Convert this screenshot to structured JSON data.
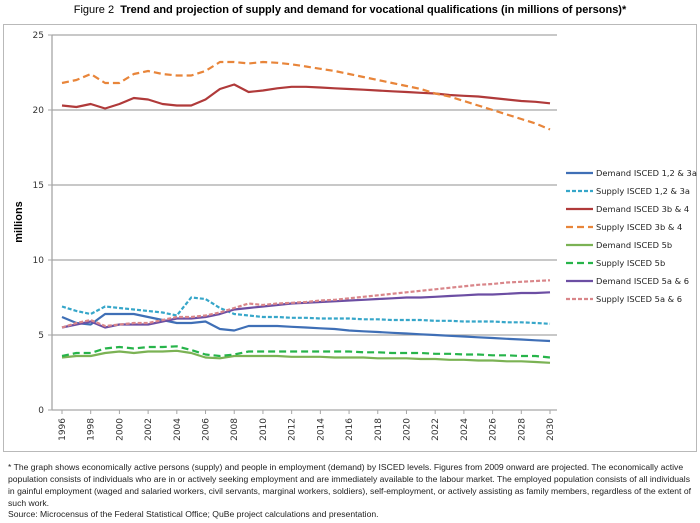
{
  "figure": {
    "number": "Figure 2",
    "title": "Trend and projection of supply and demand for vocational qualifications (in millions of persons)*"
  },
  "footnote": "* The graph shows economically active persons (supply) and people in employment (demand) by ISCED levels. Figures from 2009 onward are projected. The economically active population consists of individuals who are in or actively seeking employment and are immediately available to the labour market. The employed population consists of all individuals in gainful employment (waged and salaried workers, civil servants, marginal workers, soldiers), self-employment, or actively assisting as family members, regardless of the extent of such work.",
  "source": "Source: Microcensus of the Federal Statistical Office; QuBe project calculations and presentation.",
  "chart_data": {
    "type": "line",
    "title": "Trend and projection of supply and demand for vocational qualifications (in millions of persons)*",
    "xlabel": "",
    "ylabel": "millions",
    "ylim": [
      0,
      25
    ],
    "yticks": [
      0,
      5,
      10,
      15,
      20,
      25
    ],
    "xlim": [
      1996,
      2030
    ],
    "xticks": [
      "1996",
      "1998",
      "2000",
      "2002",
      "2004",
      "2006",
      "2008",
      "2010",
      "2012",
      "2014",
      "2016",
      "2018",
      "2020",
      "2022",
      "2024",
      "2026",
      "2028",
      "2030"
    ],
    "grid": "horizontal",
    "legend_position": "right",
    "x": [
      1996,
      1997,
      1998,
      1999,
      2000,
      2001,
      2002,
      2003,
      2004,
      2005,
      2006,
      2007,
      2008,
      2009,
      2010,
      2011,
      2012,
      2013,
      2014,
      2015,
      2016,
      2017,
      2018,
      2019,
      2020,
      2021,
      2022,
      2023,
      2024,
      2025,
      2026,
      2027,
      2028,
      2029,
      2030
    ],
    "series": [
      {
        "name": "Demand ISCED 1,2 & 3a",
        "color": "#3f6fb6",
        "dash": "solid",
        "values": [
          6.2,
          5.8,
          5.7,
          6.4,
          6.4,
          6.4,
          6.2,
          6.0,
          5.8,
          5.8,
          5.9,
          5.4,
          5.3,
          5.6,
          5.6,
          5.6,
          5.55,
          5.5,
          5.45,
          5.4,
          5.3,
          5.25,
          5.2,
          5.15,
          5.1,
          5.05,
          5.0,
          4.95,
          4.9,
          4.85,
          4.8,
          4.75,
          4.7,
          4.65,
          4.6
        ]
      },
      {
        "name": "Supply ISCED 1,2 & 3a",
        "color": "#36a6c9",
        "dash": "short-dash",
        "values": [
          6.9,
          6.6,
          6.4,
          6.9,
          6.8,
          6.7,
          6.6,
          6.5,
          6.3,
          7.5,
          7.4,
          6.8,
          6.4,
          6.3,
          6.2,
          6.2,
          6.15,
          6.15,
          6.1,
          6.1,
          6.1,
          6.05,
          6.05,
          6.0,
          6.0,
          6.0,
          5.95,
          5.95,
          5.9,
          5.9,
          5.9,
          5.85,
          5.85,
          5.8,
          5.75
        ]
      },
      {
        "name": "Demand ISCED 3b & 4",
        "color": "#b03a3a",
        "dash": "solid",
        "values": [
          20.3,
          20.2,
          20.4,
          20.1,
          20.4,
          20.8,
          20.7,
          20.4,
          20.3,
          20.3,
          20.7,
          21.4,
          21.7,
          21.2,
          21.3,
          21.45,
          21.55,
          21.55,
          21.5,
          21.45,
          21.4,
          21.35,
          21.3,
          21.25,
          21.2,
          21.15,
          21.1,
          21.0,
          20.95,
          20.9,
          20.8,
          20.7,
          20.6,
          20.55,
          20.45
        ]
      },
      {
        "name": "Supply ISCED 3b & 4",
        "color": "#e8853a",
        "dash": "long-dash",
        "values": [
          21.8,
          22.0,
          22.4,
          21.8,
          21.8,
          22.4,
          22.6,
          22.4,
          22.3,
          22.3,
          22.6,
          23.2,
          23.2,
          23.1,
          23.2,
          23.15,
          23.05,
          22.9,
          22.75,
          22.6,
          22.4,
          22.2,
          22.0,
          21.8,
          21.6,
          21.4,
          21.1,
          20.9,
          20.6,
          20.3,
          20.0,
          19.7,
          19.4,
          19.1,
          18.7
        ]
      },
      {
        "name": "Demand ISCED 5b",
        "color": "#7bb254",
        "dash": "solid",
        "values": [
          3.5,
          3.6,
          3.6,
          3.8,
          3.9,
          3.8,
          3.9,
          3.9,
          3.95,
          3.8,
          3.5,
          3.45,
          3.6,
          3.6,
          3.6,
          3.6,
          3.55,
          3.55,
          3.55,
          3.5,
          3.5,
          3.5,
          3.45,
          3.45,
          3.45,
          3.4,
          3.4,
          3.35,
          3.35,
          3.3,
          3.3,
          3.25,
          3.25,
          3.2,
          3.15
        ]
      },
      {
        "name": "Supply ISCED 5b",
        "color": "#27b44a",
        "dash": "long-dash",
        "values": [
          3.6,
          3.8,
          3.8,
          4.1,
          4.2,
          4.1,
          4.2,
          4.2,
          4.25,
          4.0,
          3.7,
          3.6,
          3.7,
          3.9,
          3.9,
          3.9,
          3.9,
          3.9,
          3.9,
          3.9,
          3.9,
          3.85,
          3.85,
          3.8,
          3.8,
          3.8,
          3.75,
          3.75,
          3.7,
          3.7,
          3.65,
          3.65,
          3.6,
          3.6,
          3.5
        ]
      },
      {
        "name": "Demand ISCED 5a & 6",
        "color": "#6c4ea3",
        "dash": "solid",
        "values": [
          5.5,
          5.7,
          5.9,
          5.5,
          5.7,
          5.7,
          5.7,
          5.9,
          6.1,
          6.1,
          6.2,
          6.4,
          6.7,
          6.8,
          6.9,
          7.0,
          7.1,
          7.15,
          7.2,
          7.25,
          7.3,
          7.35,
          7.4,
          7.45,
          7.5,
          7.5,
          7.55,
          7.6,
          7.65,
          7.7,
          7.7,
          7.75,
          7.8,
          7.8,
          7.85
        ]
      },
      {
        "name": "Supply ISCED 5a & 6",
        "color": "#d9868a",
        "dash": "short-dash",
        "values": [
          5.5,
          5.8,
          6.0,
          5.6,
          5.7,
          5.8,
          5.8,
          6.0,
          6.2,
          6.2,
          6.3,
          6.5,
          6.8,
          7.1,
          7.0,
          7.1,
          7.15,
          7.2,
          7.3,
          7.35,
          7.45,
          7.55,
          7.65,
          7.75,
          7.85,
          7.95,
          8.05,
          8.15,
          8.25,
          8.35,
          8.4,
          8.5,
          8.55,
          8.6,
          8.65
        ]
      }
    ]
  }
}
